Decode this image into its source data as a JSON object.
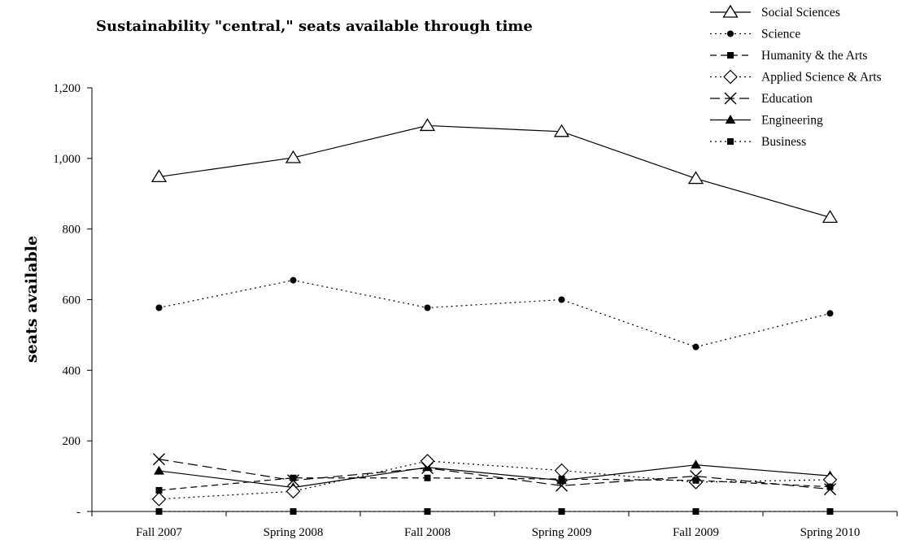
{
  "chart_data": {
    "type": "line",
    "title": "Sustainability \"central,\" seats available through time",
    "xlabel": "",
    "ylabel": "seats available",
    "categories": [
      "Fall 2007",
      "Spring 2008",
      "Fall 2008",
      "Spring 2009",
      "Fall 2009",
      "Spring 2010"
    ],
    "ylim": [
      0,
      1200
    ],
    "yticks": [
      0,
      200,
      400,
      600,
      800,
      1000,
      1200
    ],
    "ytick_labels": [
      "-",
      "200",
      "400",
      "600",
      "800",
      "1,000",
      "1,200"
    ],
    "grid": false,
    "legend_position": "top-right",
    "series": [
      {
        "name": "Social Sciences",
        "values": [
          948,
          1002,
          1093,
          1076,
          943,
          833
        ],
        "marker": "triangle-open",
        "dash": "solid"
      },
      {
        "name": "Science",
        "values": [
          577,
          655,
          577,
          600,
          466,
          561
        ],
        "marker": "circle-filled",
        "dash": "dotted"
      },
      {
        "name": "Humanity & the Arts",
        "values": [
          60,
          95,
          95,
          92,
          88,
          70
        ],
        "marker": "square-filled",
        "dash": "dashed"
      },
      {
        "name": "Applied Science & Arts",
        "values": [
          35,
          57,
          143,
          116,
          83,
          90
        ],
        "marker": "diamond-open",
        "dash": "dotted"
      },
      {
        "name": "Education",
        "values": [
          148,
          88,
          123,
          73,
          100,
          63
        ],
        "marker": "x",
        "dash": "longdash"
      },
      {
        "name": "Engineering",
        "values": [
          115,
          68,
          125,
          88,
          132,
          101
        ],
        "marker": "triangle-filled",
        "dash": "solid"
      },
      {
        "name": "Business",
        "values": [
          0,
          0,
          0,
          0,
          0,
          0
        ],
        "marker": "square-filled",
        "dash": "dotted"
      }
    ]
  }
}
